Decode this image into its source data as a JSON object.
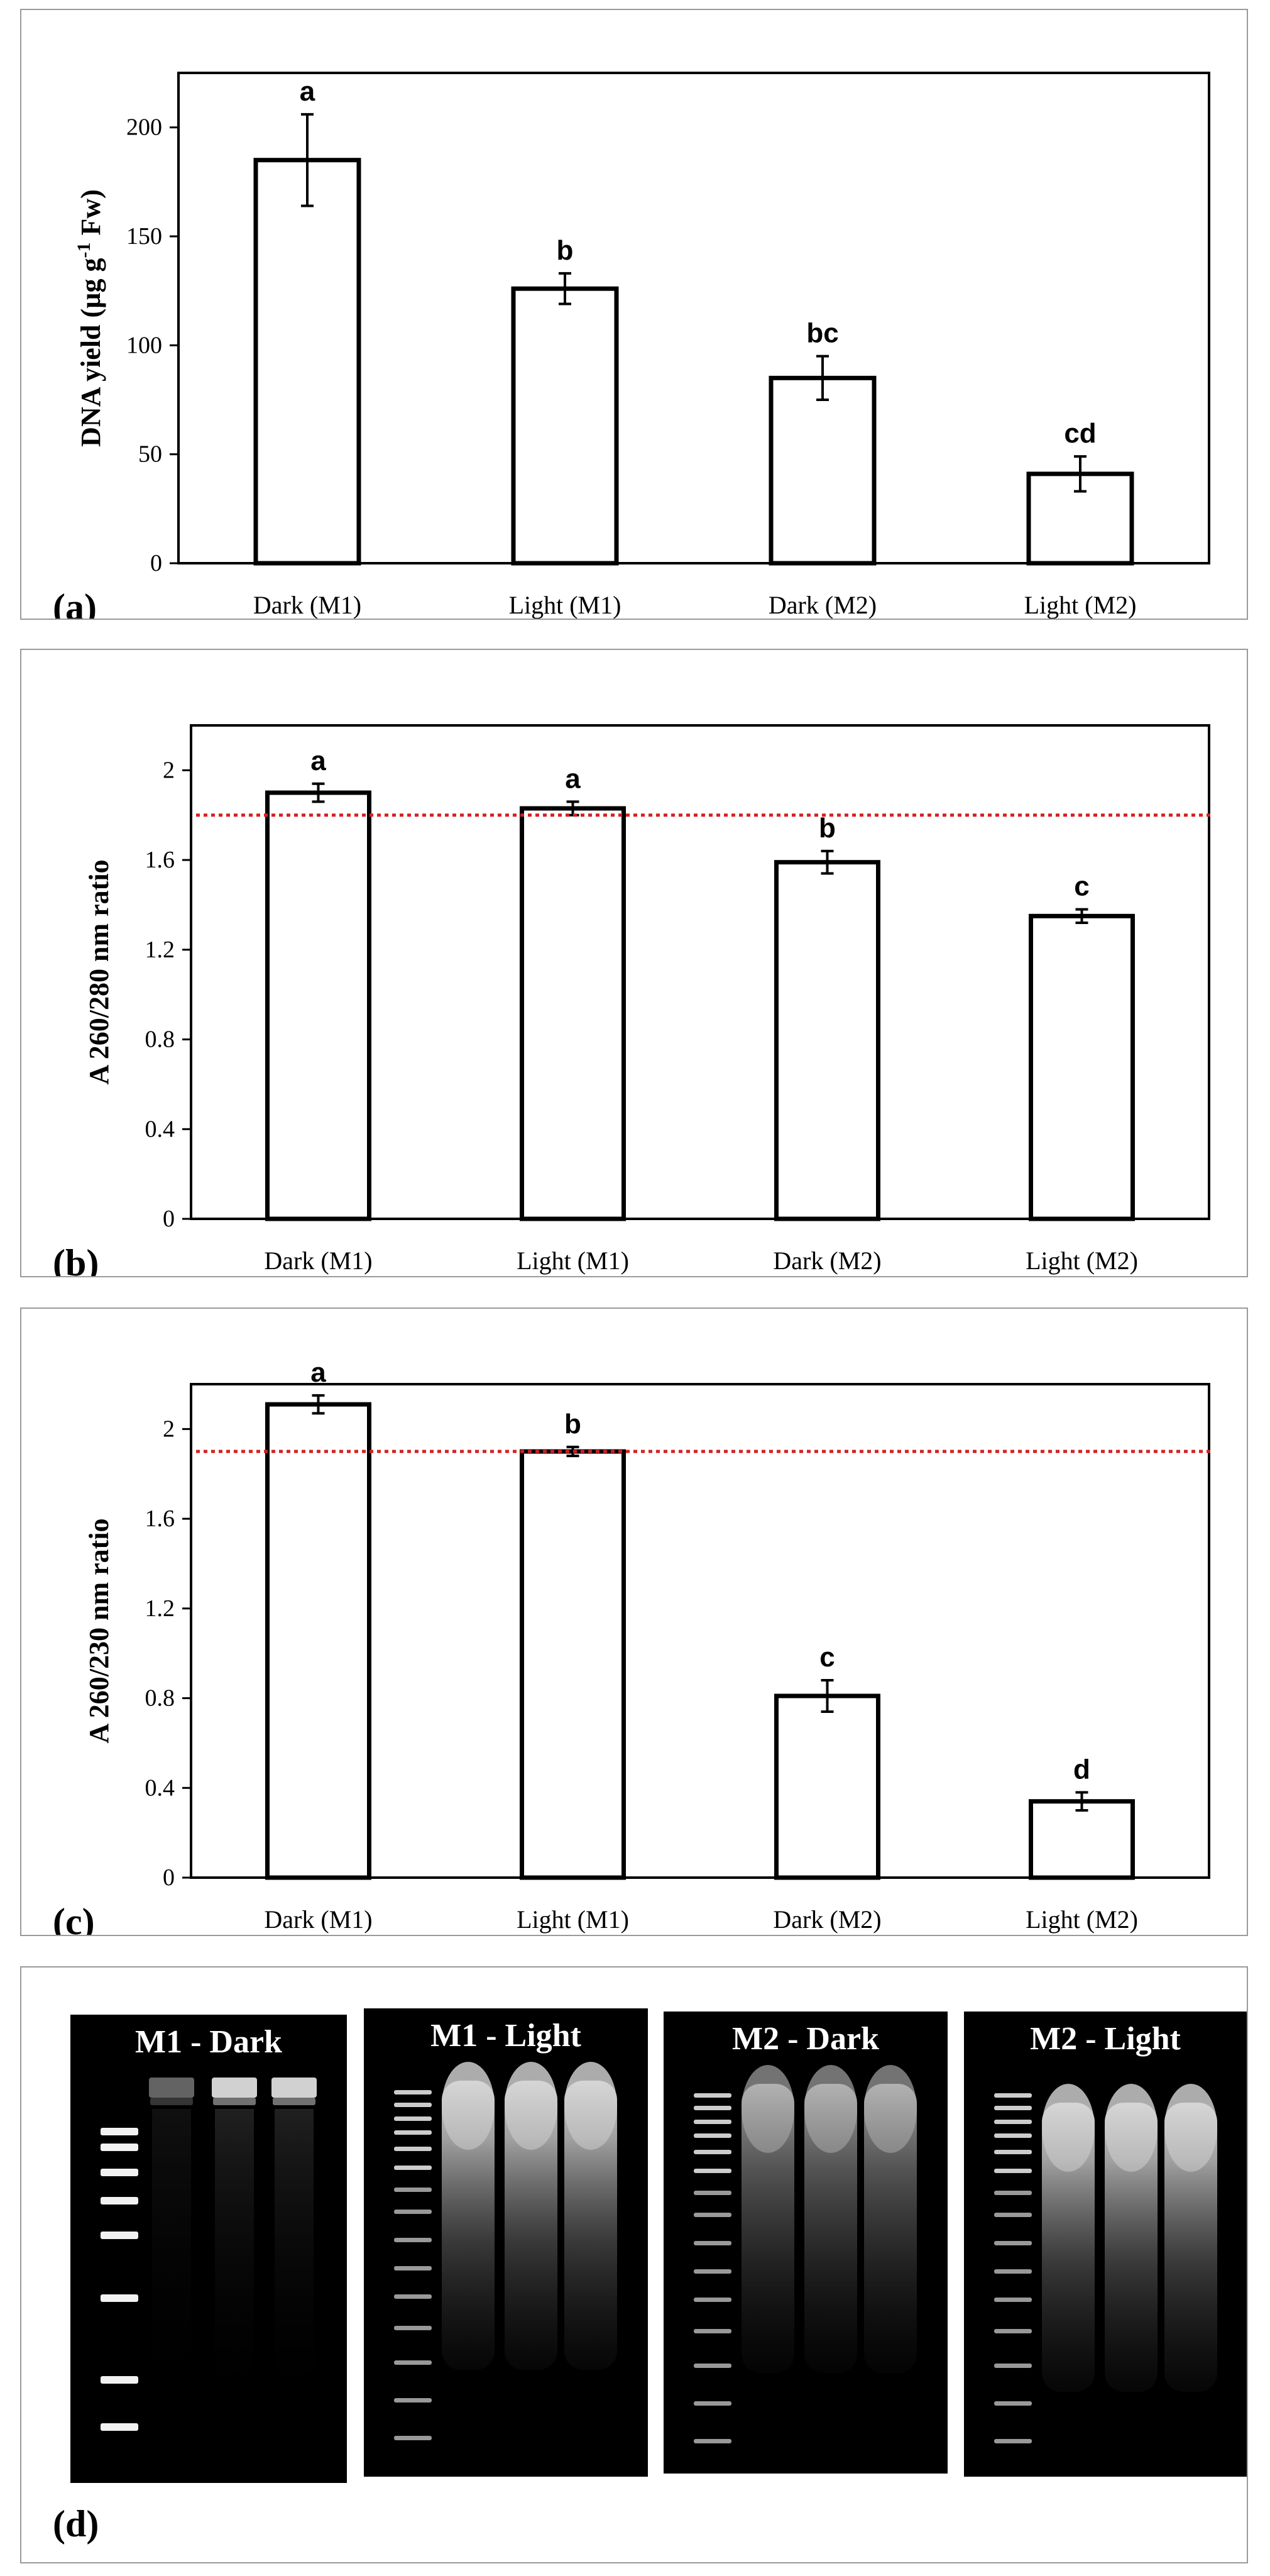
{
  "chart_data": [
    {
      "type": "bar",
      "panel_label": "(a)",
      "ylabel": "DNA yield (µg g",
      "ylabel_sup": "-1",
      "ylabel_tail": " Fw)",
      "categories": [
        "Dark (M1)",
        "Light (M1)",
        "Dark (M2)",
        "Light (M2)"
      ],
      "values": [
        185,
        126,
        85,
        41
      ],
      "errors": [
        21,
        7,
        10,
        8
      ],
      "significance": [
        "a",
        "b",
        "bc",
        "cd"
      ],
      "ylim": [
        0,
        225
      ],
      "yticks": [
        0,
        50,
        100,
        150,
        200
      ],
      "ytick_labels": [
        "0",
        "50",
        "100",
        "150",
        "200"
      ],
      "reference_line": null
    },
    {
      "type": "bar",
      "panel_label": "(b)",
      "ylabel": "A 260/280 nm ratio",
      "categories": [
        "Dark (M1)",
        "Light (M1)",
        "Dark (M2)",
        "Light (M2)"
      ],
      "values": [
        1.9,
        1.83,
        1.59,
        1.35
      ],
      "errors": [
        0.04,
        0.03,
        0.05,
        0.03
      ],
      "significance": [
        "a",
        "a",
        "b",
        "c"
      ],
      "ylim": [
        0,
        2.2
      ],
      "yticks": [
        0,
        0.4,
        0.8,
        1.2,
        1.6,
        2.0
      ],
      "ytick_labels": [
        "0",
        "0.4",
        "0.8",
        "1.2",
        "1.6",
        "2"
      ],
      "reference_line": 1.8
    },
    {
      "type": "bar",
      "panel_label": "(c)",
      "ylabel": "A 260/230 nm ratio",
      "categories": [
        "Dark (M1)",
        "Light (M1)",
        "Dark (M2)",
        "Light (M2)"
      ],
      "values": [
        2.11,
        1.9,
        0.81,
        0.34
      ],
      "errors": [
        0.04,
        0.02,
        0.07,
        0.04
      ],
      "significance": [
        "a",
        "b",
        "c",
        "d"
      ],
      "ylim": [
        0,
        2.2
      ],
      "yticks": [
        0,
        0.4,
        0.8,
        1.2,
        1.6,
        2.0
      ],
      "ytick_labels": [
        "0",
        "0.4",
        "0.8",
        "1.2",
        "1.6",
        "2"
      ],
      "reference_line": 1.9
    }
  ],
  "gel_panel": {
    "panel_label": "(d)",
    "gels": [
      {
        "label": "M1 - Dark"
      },
      {
        "label": "M1 - Light"
      },
      {
        "label": "M2 - Dark"
      },
      {
        "label": "M2 - Light"
      }
    ]
  },
  "colors": {
    "bar_fill": "#ffffff",
    "bar_stroke": "#000000",
    "reference_line": "#d62020",
    "gel_background": "#000000",
    "gel_text": "#ffffff"
  }
}
